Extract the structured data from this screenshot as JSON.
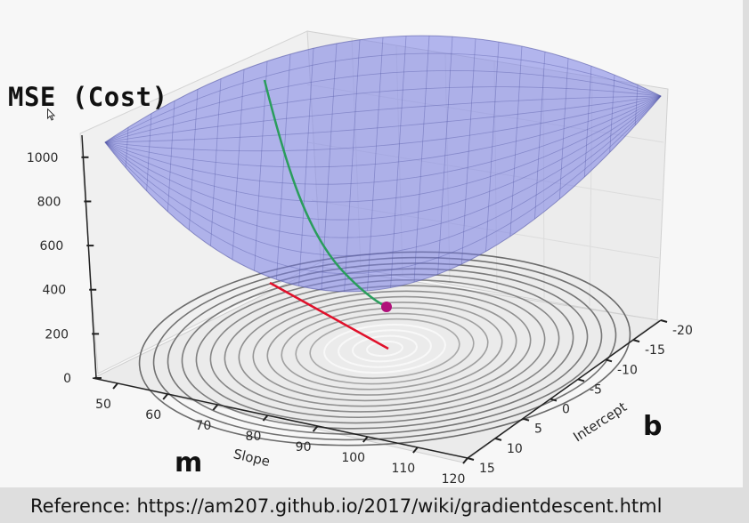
{
  "title": "MSE (Cost)",
  "caption": "Reference: https://am207.github.io/2017/wiki/gradientdescent.html",
  "slope_big_label": "m",
  "intercept_big_label": "b",
  "colors": {
    "surface_fill": "#7a7fe6",
    "surface_grid": "#565aa8",
    "descent_path": "#2a9d5c",
    "tangent_line": "#e0102a",
    "current_point": "#b0107a",
    "contour": "#6a6a6a"
  },
  "chart_data": {
    "type": "surface",
    "title": "",
    "xlabel": "Slope",
    "ylabel": "Intercept",
    "zlabel": "",
    "xlim": [
      45,
      120
    ],
    "ylim": [
      -20,
      15
    ],
    "zlim": [
      0,
      1100
    ],
    "x_ticks": [
      "50",
      "60",
      "70",
      "80",
      "90",
      "100",
      "110",
      "120"
    ],
    "y_ticks": [
      "-20",
      "-15",
      "-10",
      "-5",
      "0",
      "5",
      "10",
      "15"
    ],
    "z_ticks": [
      "0",
      "200",
      "400",
      "600",
      "800",
      "1000"
    ],
    "surface": {
      "function": "MSE over slope m and intercept b",
      "minimum": {
        "m": 86,
        "b": -3,
        "cost": 180
      }
    },
    "contours_on_floor": true,
    "descent_path": {
      "start": {
        "m": 64,
        "b": 15,
        "cost": 1050
      },
      "end": {
        "m": 84,
        "b": -1,
        "cost": 300
      }
    },
    "current_point": {
      "m": 84,
      "b": -1,
      "cost": 300
    },
    "grid": true
  }
}
